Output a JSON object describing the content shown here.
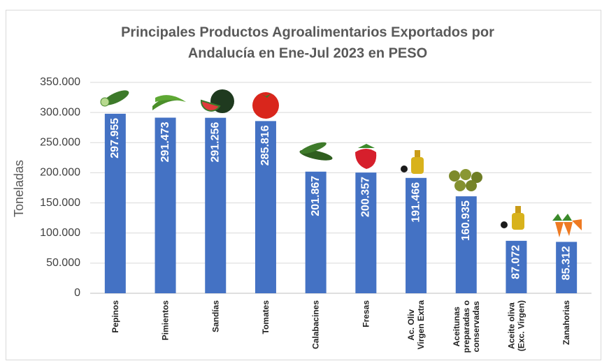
{
  "chart_data": {
    "type": "bar",
    "title": [
      "Principales Productos Agroalimentarios  Exportados por",
      "Andalucía en Ene-Jul 2023 en PESO"
    ],
    "y_label": "Toneladas",
    "categories": [
      "Pepinos",
      "Pimientos",
      "Sandías",
      "Tomates",
      "Calabacines",
      "Fresas",
      "Ac. Oliv\nVirgen Extra",
      "Aceitunas\npreparadas o\nconservadas",
      "Aceite oliva\n(Exc. Virgen)",
      "Zanahorias"
    ],
    "values": [
      297955,
      291473,
      291256,
      285816,
      201867,
      200357,
      191466,
      160935,
      87072,
      85312
    ],
    "value_labels": [
      "297.955",
      "291.473",
      "291.256",
      "285.816",
      "201.867",
      "200.357",
      "191.466",
      "160.935",
      "87.072",
      "85.312"
    ],
    "color": "#4472c4",
    "ylim": [
      0,
      350000
    ],
    "yticks": [
      0,
      {
        "value": 50000,
        "label": "50.000"
      },
      {
        "value": 100000,
        "label": "100.000"
      },
      {
        "value": 150000,
        "label": "150.000"
      },
      {
        "value": 200000,
        "label": "200.000"
      },
      {
        "value": 250000,
        "label": "250.000"
      },
      {
        "value": 300000,
        "label": "300.000"
      },
      {
        "value": 350000,
        "label": "350.000"
      }
    ],
    "grid": true
  }
}
